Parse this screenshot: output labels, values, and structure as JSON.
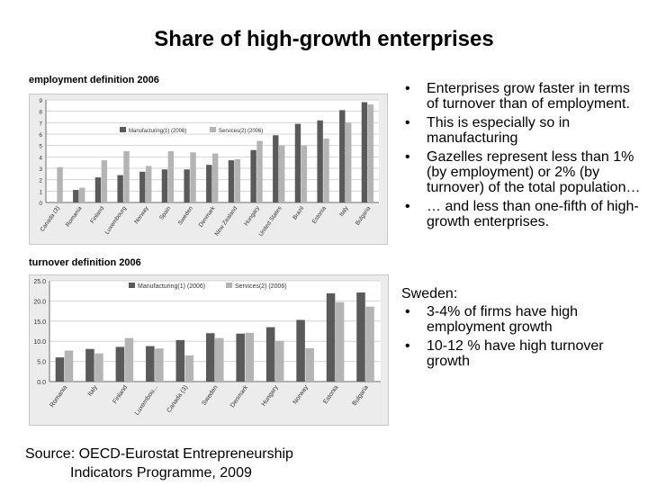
{
  "slide": {
    "title": "Share of high-growth enterprises",
    "bullets": [
      "Enterprises grow faster in terms of turnover than of employment.",
      "This is especially so in manufacturing",
      "Gazelles represent less than 1% (by employment) or 2% (by turnover) of the total population…",
      "… and less than one-fifth of high-growth enterprises."
    ],
    "bullet_glyph": "•",
    "sweden_heading": "Sweden:",
    "sweden_bullets": [
      "3-4% of firms have high employment growth",
      "10-12 % have high turnover growth"
    ],
    "source_line1": "Source: OECD-Eurostat Entrepreneurship",
    "source_line2": "Indicators Programme, 2009"
  },
  "colors": {
    "manufacturing": "#5a5a5a",
    "services": "#b4b4b4",
    "grid": "#d4d4d4",
    "axis": "#6e6e6e"
  },
  "chart_data": [
    {
      "type": "bar",
      "title": "employment definition 2006",
      "categories": [
        "Canada (3)",
        "Romania",
        "Finland",
        "Luxembourg",
        "Norway",
        "Spain",
        "Sweden",
        "Denmark",
        "New Zealand",
        "Hungary",
        "United States",
        "Brazil",
        "Estonia",
        "Italy",
        "Bulgaria"
      ],
      "series": [
        {
          "name": "Manufacturing(1) (2006)",
          "values": [
            null,
            1.1,
            2.2,
            2.4,
            2.7,
            2.9,
            2.9,
            3.3,
            3.7,
            4.6,
            5.9,
            6.9,
            7.2,
            8.1,
            8.8
          ]
        },
        {
          "name": "Services(2) (2006)",
          "values": [
            3.1,
            1.3,
            3.7,
            4.5,
            3.2,
            4.5,
            4.4,
            4.3,
            3.8,
            5.4,
            5.0,
            5.0,
            5.6,
            7.0,
            8.6
          ]
        }
      ],
      "ylim": [
        0,
        9
      ],
      "yticks": [
        "0",
        "1",
        "2",
        "3",
        "4",
        "5",
        "6",
        "7",
        "8",
        "9"
      ],
      "grid": true,
      "legend": "top-center"
    },
    {
      "type": "bar",
      "title": "turnover definition 2006",
      "categories": [
        "Romania",
        "Italy",
        "Finland",
        "Luxembou...",
        "Canada (3)",
        "Sweden",
        "Denmark",
        "Hungary",
        "Norway",
        "Estonia",
        "Bulgaria"
      ],
      "series": [
        {
          "name": "Manufacturing(1) (2006)",
          "values": [
            6.0,
            8.1,
            8.6,
            8.8,
            10.3,
            12.0,
            11.9,
            13.5,
            15.3,
            21.9,
            22.1
          ]
        },
        {
          "name": "Services(2) (2006)",
          "values": [
            7.7,
            7.0,
            10.8,
            8.2,
            6.5,
            10.8,
            12.1,
            10.1,
            8.3,
            19.7,
            18.6
          ]
        }
      ],
      "ylim": [
        0,
        25
      ],
      "yticks": [
        "0.0",
        "5.0",
        "10.0",
        "15.0",
        "20.0",
        "25.0"
      ],
      "grid": true,
      "legend": "top-center"
    }
  ]
}
